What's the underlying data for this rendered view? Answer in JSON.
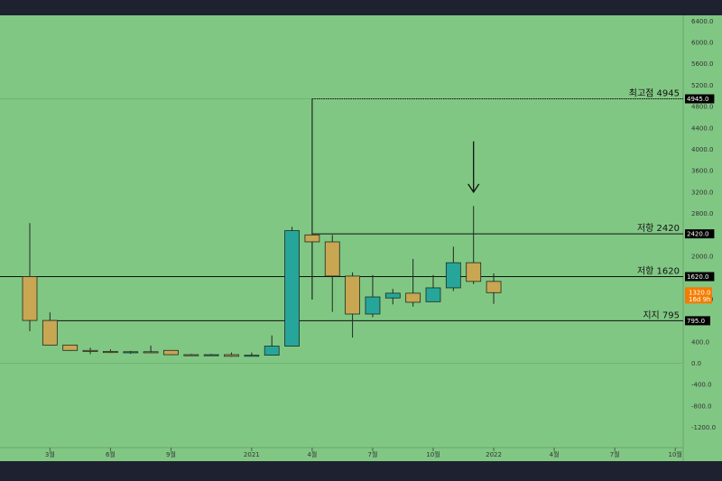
{
  "chart_data": {
    "type": "candlestick",
    "y_ticks": [
      "6400.0",
      "6000.0",
      "5600.0",
      "5200.0",
      "4800.0",
      "4400.0",
      "4000.0",
      "3600.0",
      "3200.0",
      "2800.0",
      "2400.0",
      "2000.0",
      "1600.0",
      "1200.0",
      "800.0",
      "400.0",
      "0.0",
      "-400.0",
      "-800.0",
      "-1200.0"
    ],
    "y_tick_values": [
      6400,
      6000,
      5600,
      5200,
      4800,
      4400,
      4000,
      3600,
      3200,
      2800,
      2400,
      2000,
      1600,
      1200,
      800,
      400,
      0,
      -400,
      -800,
      -1200
    ],
    "ylim": [
      -1400,
      6650
    ],
    "x_ticks": [
      {
        "label": "3월",
        "index": 1
      },
      {
        "label": "6월",
        "index": 4
      },
      {
        "label": "9월",
        "index": 7
      },
      {
        "label": "2021",
        "index": 11
      },
      {
        "label": "4월",
        "index": 14
      },
      {
        "label": "7월",
        "index": 17
      },
      {
        "label": "10월",
        "index": 20
      },
      {
        "label": "2022",
        "index": 23
      },
      {
        "label": "4월",
        "index": 26
      },
      {
        "label": "7월",
        "index": 29
      },
      {
        "label": "10월",
        "index": 32
      }
    ],
    "candles": [
      {
        "o": 1620,
        "h": 2620,
        "l": 600,
        "c": 800
      },
      {
        "o": 800,
        "h": 950,
        "l": 340,
        "c": 340
      },
      {
        "o": 340,
        "h": 340,
        "l": 230,
        "c": 240
      },
      {
        "o": 240,
        "h": 290,
        "l": 170,
        "c": 220
      },
      {
        "o": 220,
        "h": 260,
        "l": 190,
        "c": 210
      },
      {
        "o": 210,
        "h": 230,
        "l": 175,
        "c": 215
      },
      {
        "o": 215,
        "h": 330,
        "l": 190,
        "c": 210
      },
      {
        "o": 240,
        "h": 240,
        "l": 150,
        "c": 160
      },
      {
        "o": 160,
        "h": 175,
        "l": 135,
        "c": 150
      },
      {
        "o": 150,
        "h": 175,
        "l": 140,
        "c": 160
      },
      {
        "o": 160,
        "h": 200,
        "l": 120,
        "c": 130
      },
      {
        "o": 130,
        "h": 200,
        "l": 130,
        "c": 150
      },
      {
        "o": 150,
        "h": 520,
        "l": 150,
        "c": 320
      },
      {
        "o": 320,
        "h": 2550,
        "l": 320,
        "c": 2480
      },
      {
        "o": 2400,
        "h": 4945,
        "l": 1190,
        "c": 2270
      },
      {
        "o": 2270,
        "h": 2400,
        "l": 960,
        "c": 1630
      },
      {
        "o": 1630,
        "h": 1700,
        "l": 480,
        "c": 920
      },
      {
        "o": 920,
        "h": 1650,
        "l": 860,
        "c": 1240
      },
      {
        "o": 1220,
        "h": 1390,
        "l": 1100,
        "c": 1310
      },
      {
        "o": 1310,
        "h": 1950,
        "l": 1060,
        "c": 1140
      },
      {
        "o": 1150,
        "h": 1650,
        "l": 1150,
        "c": 1410
      },
      {
        "o": 1410,
        "h": 2180,
        "l": 1350,
        "c": 1880
      },
      {
        "o": 1880,
        "h": 2940,
        "l": 1480,
        "c": 1530
      },
      {
        "o": 1530,
        "h": 1680,
        "l": 1110,
        "c": 1320
      }
    ],
    "levels": [
      {
        "label": "최고점 4945",
        "value": 4945,
        "badge": "4945.0",
        "start_index": 14
      },
      {
        "label": "저항 2420",
        "value": 2420,
        "badge": "2420.0",
        "start_index": 14
      },
      {
        "label": "저항 1620",
        "value": 1620,
        "badge": "1620.0",
        "start_index": 0
      },
      {
        "label": "지지 795",
        "value": 795,
        "badge": "795.0",
        "start_index": 1
      }
    ],
    "current_price": {
      "value": 1320,
      "label": "1320.0",
      "countdown": "16d 9h"
    },
    "annotation": {
      "type": "arrow-down",
      "index": 22,
      "from": 4150,
      "to": 3200
    },
    "colors": {
      "background": "#81c784",
      "up": "#26a69a",
      "down": "#c8a652",
      "line": "#111111",
      "current": "#f57c00",
      "badge": "#000000"
    },
    "grid": false
  }
}
